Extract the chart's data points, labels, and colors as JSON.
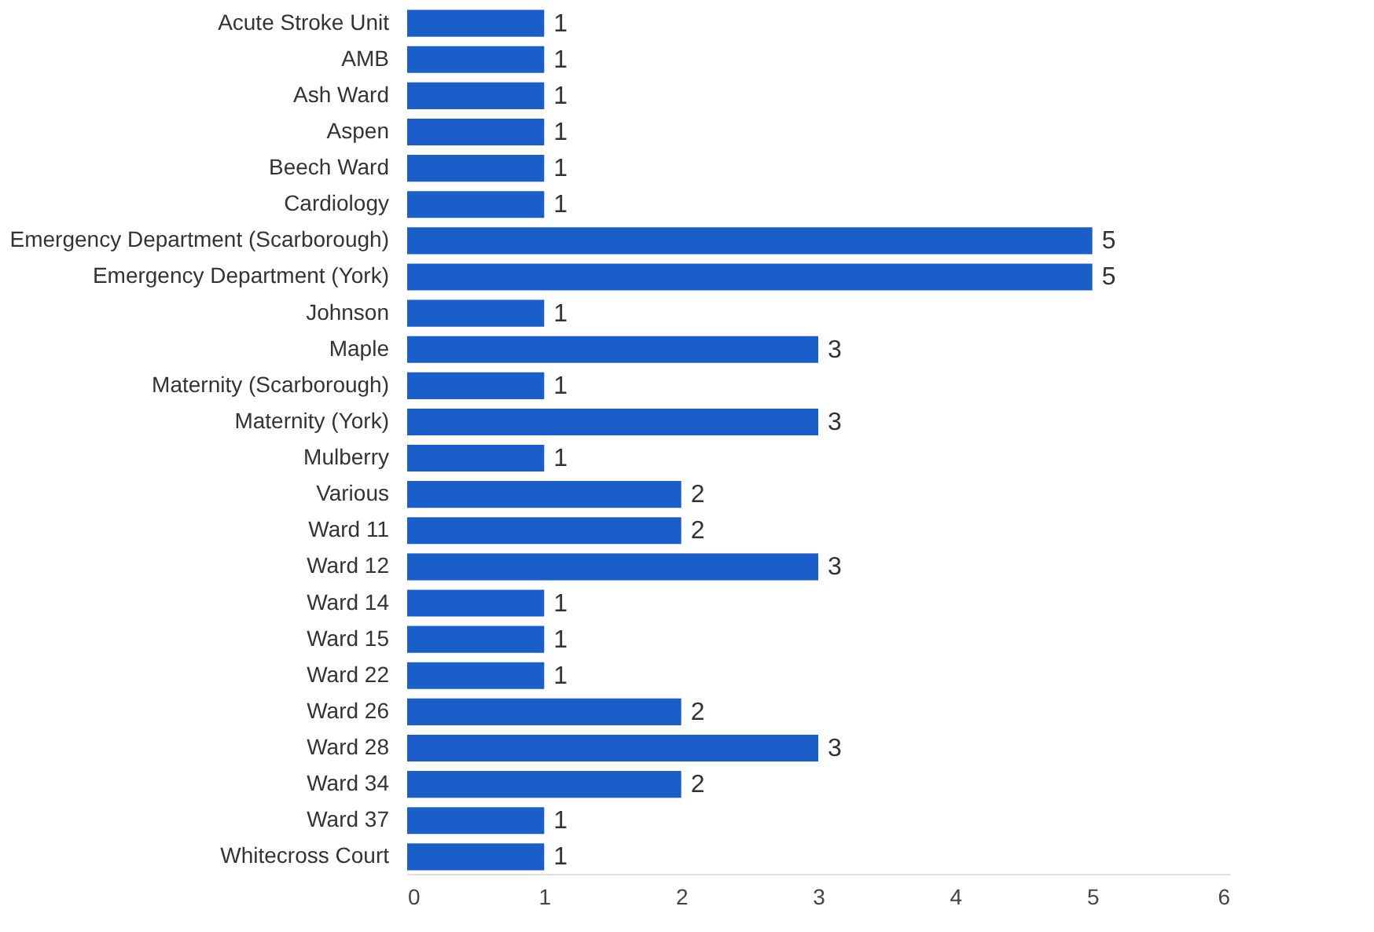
{
  "chart_data": {
    "type": "bar",
    "orientation": "horizontal",
    "categories": [
      "Acute Stroke Unit",
      "AMB",
      "Ash Ward",
      "Aspen",
      "Beech Ward",
      "Cardiology",
      "Emergency Department (Scarborough)",
      "Emergency Department (York)",
      "Johnson",
      "Maple",
      "Maternity (Scarborough)",
      "Maternity (York)",
      "Mulberry",
      "Various",
      "Ward 11",
      "Ward 12",
      "Ward 14",
      "Ward 15",
      "Ward 22",
      "Ward 26",
      "Ward 28",
      "Ward 34",
      "Ward 37",
      "Whitecross Court"
    ],
    "values": [
      1,
      1,
      1,
      1,
      1,
      1,
      5,
      5,
      1,
      3,
      1,
      3,
      1,
      2,
      2,
      3,
      1,
      1,
      1,
      2,
      3,
      2,
      1,
      1
    ],
    "color": "#1a5fc9",
    "xlim": [
      0,
      6
    ],
    "xticks": [
      0,
      1,
      2,
      3,
      4,
      5,
      6
    ],
    "grid": false,
    "data_labels": true
  }
}
